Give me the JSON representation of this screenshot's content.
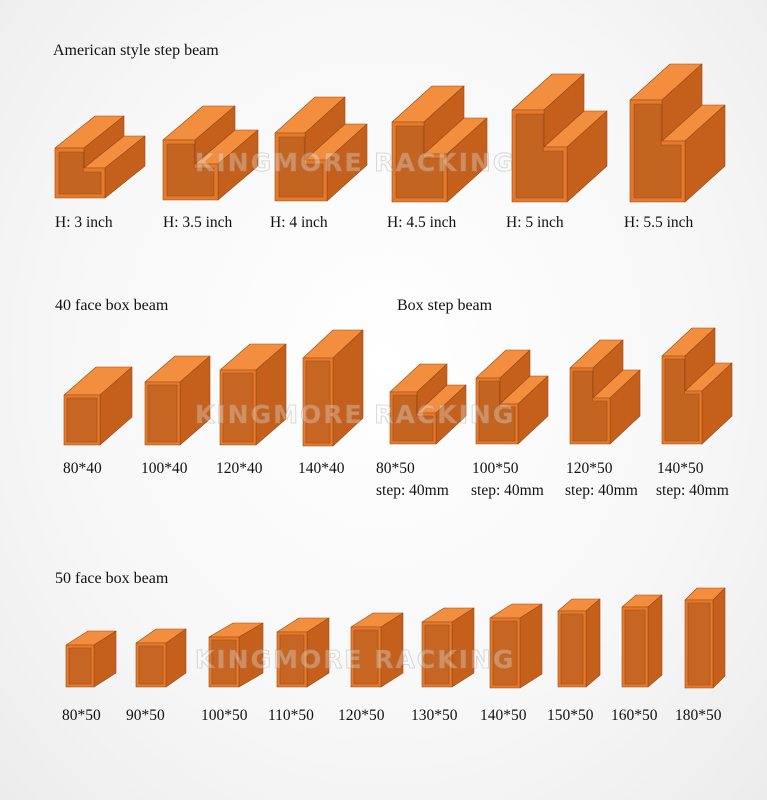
{
  "sections": {
    "american": {
      "title": "American style step beam",
      "labels": [
        "H: 3 inch",
        "H: 3.5 inch",
        "H: 4 inch",
        "H: 4.5 inch",
        "H: 5 inch",
        "H: 5.5 inch"
      ]
    },
    "face40": {
      "title": "40 face box beam",
      "labels": [
        "80*40",
        "100*40",
        "120*40",
        "140*40"
      ]
    },
    "boxstep": {
      "title": "Box step beam",
      "labels": [
        "80*50",
        "100*50",
        "120*50",
        "140*50"
      ],
      "step_labels": [
        "step: 40mm",
        "step: 40mm",
        "step: 40mm",
        "step: 40mm"
      ]
    },
    "face50": {
      "title": "50 face box beam",
      "labels": [
        "80*50",
        "90*50",
        "100*50",
        "110*50",
        "120*50",
        "130*50",
        "140*50",
        "150*50",
        "160*50",
        "180*50"
      ]
    }
  },
  "watermark": "KINGMORE RACKING",
  "colors": {
    "beam_front": "#e57a2c",
    "beam_top": "#f28e3d",
    "beam_side": "#c4601c",
    "beam_inner": "#a9521a"
  }
}
